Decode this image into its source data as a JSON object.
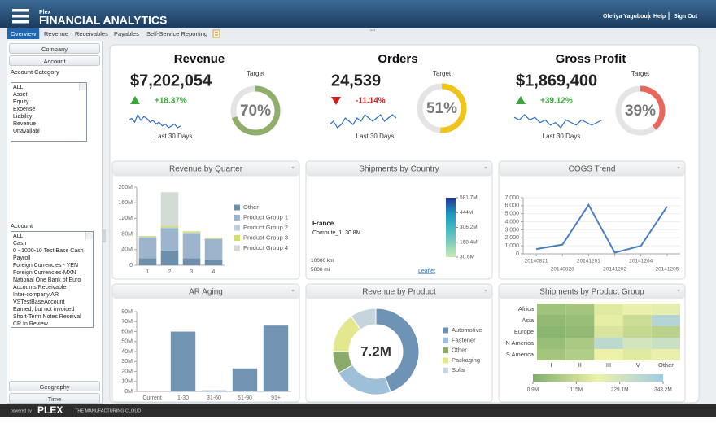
{
  "header": {
    "app_small": "Plex",
    "title": "FINANCIAL ANALYTICS",
    "user": "Ofeliya Yaguboua",
    "links": [
      "Help",
      "Sign Out"
    ]
  },
  "tabs": [
    "Overview",
    "Revenue",
    "Receivables",
    "Payables",
    "Self-Service Reporting"
  ],
  "active_tab": 0,
  "sidebar": {
    "sections_top": [
      "Company",
      "Account"
    ],
    "account_category": {
      "label": "Account Category",
      "items": [
        "ALL",
        "Asset",
        "Equity",
        "Expense",
        "Liability",
        "Revenue",
        "Unavailabl"
      ]
    },
    "account": {
      "label": "Account",
      "items": [
        "ALL",
        "Cash",
        "0 - 1000-10 Test Base Cash",
        "Payroll",
        "Foreign Currencies - YEN",
        "Foreign Currencies-MXN",
        "National One Bank of Euro",
        "Accounts Receivable",
        "Inter-company AR",
        "VSTestBaseAccount",
        "Earned, but not invoiced",
        "Short-Term Notes Receival",
        "CR In Review"
      ]
    },
    "sections_bottom": [
      "Geography",
      "Time"
    ]
  },
  "kpis": [
    {
      "title": "Revenue",
      "value": "$7,202,054",
      "change": "+18.37%",
      "trend": "up",
      "caption": "Last 30 Days",
      "target_label": "Target",
      "gauge": {
        "value": 70,
        "label": "70%"
      },
      "gauge_color": "#8fae6b",
      "sparkline": [
        6,
        7,
        5,
        9,
        6,
        8,
        7,
        5,
        6,
        4,
        5,
        3,
        4,
        2,
        3,
        4,
        2,
        3
      ]
    },
    {
      "title": "Orders",
      "value": "24,539",
      "change": "-11.14%",
      "trend": "down",
      "caption": "Last 30 Days",
      "target_label": "Target",
      "gauge": {
        "value": 51,
        "label": "51%"
      },
      "gauge_color": "#f0c419",
      "sparkline": [
        4,
        5,
        3,
        4,
        6,
        5,
        4,
        6,
        5,
        7,
        6,
        5,
        6,
        7,
        5,
        6,
        7,
        6
      ]
    },
    {
      "title": "Gross Profit",
      "value": "$1,869,400",
      "change": "+39.12%",
      "trend": "up",
      "caption": "Last 30 Days",
      "target_label": "Target",
      "gauge": {
        "value": 39,
        "label": "39%"
      },
      "gauge_color": "#e8675b",
      "sparkline": [
        6,
        5,
        7,
        5,
        6,
        4,
        5,
        3,
        4,
        2,
        5,
        4,
        3,
        5,
        4,
        3,
        4,
        5
      ]
    }
  ],
  "chart_data": [
    {
      "type": "bar",
      "stacked": true,
      "title": "Revenue by Quarter",
      "categories": [
        "1",
        "2",
        "3",
        "4"
      ],
      "series": [
        {
          "name": "Other",
          "color": "#6e8fac",
          "values": [
            18,
            38,
            18,
            13
          ]
        },
        {
          "name": "Product Group 1",
          "color": "#9db5cc",
          "values": [
            53,
            57,
            64,
            54
          ]
        },
        {
          "name": "Product Group 2",
          "color": "#c0cfdc",
          "values": [
            2,
            2,
            2,
            2
          ]
        },
        {
          "name": "Product Group 3",
          "color": "#d4e06a",
          "values": [
            2,
            3,
            3,
            2
          ]
        },
        {
          "name": "Product Group 4",
          "color": "#d3dbd4",
          "values": [
            0,
            87,
            0,
            0
          ]
        }
      ],
      "ylim": [
        0,
        200
      ],
      "yticks": [
        {
          "value": 0,
          "label": "0"
        },
        {
          "value": 40,
          "label": "40M"
        },
        {
          "value": 80,
          "label": "80M"
        },
        {
          "value": 120,
          "label": "120M"
        },
        {
          "value": 160,
          "label": "160M"
        },
        {
          "value": 200,
          "label": "200M"
        }
      ],
      "grid": false,
      "legend": "right"
    },
    {
      "type": "map",
      "title": "Shipments by Country",
      "tooltip": {
        "title": "France",
        "text": "Compute_1: 30.8M"
      },
      "clim": [
        30.6,
        581.7
      ],
      "colorscale": [
        "#c7e9b4",
        "#7fcdbb",
        "#41b6c4",
        "#1d91c0",
        "#253494"
      ],
      "ticks": [
        {
          "value": 581.7,
          "label": "581.7M"
        },
        {
          "value": 444,
          "label": "444M"
        },
        {
          "value": 306.2,
          "label": "306.2M"
        },
        {
          "value": 168.4,
          "label": "168.4M"
        },
        {
          "value": 30.6,
          "label": "30.6M"
        }
      ],
      "scale_labels": [
        "10000 km",
        "5000 mi"
      ],
      "attribution": "Leaflet"
    },
    {
      "type": "line",
      "title": "COGS Trend",
      "categories": [
        "20140821",
        "20140828",
        "20141201",
        "20141202",
        "20141204",
        "20141205"
      ],
      "values": [
        600,
        1150,
        6100,
        150,
        1000,
        5900
      ],
      "color": "#4a7fc0",
      "ylim": [
        0,
        7000
      ],
      "yticks": [
        0,
        {
          "value": 1000,
          "label": "1,000"
        },
        {
          "value": 2000,
          "label": "2,000"
        },
        {
          "value": 3000,
          "label": "3,000"
        },
        {
          "value": 4000,
          "label": "4,000"
        },
        {
          "value": 5000,
          "label": "5,000"
        },
        {
          "value": 6000,
          "label": "6,000"
        },
        {
          "value": 7000,
          "label": "7,000"
        }
      ],
      "grid": true
    },
    {
      "type": "bar",
      "title": "AR Aging",
      "categories": [
        "Current",
        "1-30",
        "31-60",
        "61-90",
        "91+"
      ],
      "values": [
        0,
        60,
        1,
        23,
        66
      ],
      "color": "#7393b3",
      "ylim": [
        0,
        80
      ],
      "yticks": [
        {
          "value": 0,
          "label": "0M"
        },
        {
          "value": 10,
          "label": "10M"
        },
        {
          "value": 20,
          "label": "20M"
        },
        {
          "value": 30,
          "label": "30M"
        },
        {
          "value": 40,
          "label": "40M"
        },
        {
          "value": 50,
          "label": "50M"
        },
        {
          "value": 60,
          "label": "60M"
        },
        {
          "value": 70,
          "label": "70M"
        },
        {
          "value": 80,
          "label": "80M"
        }
      ],
      "grid": false
    },
    {
      "type": "donut",
      "title": "Revenue by Product",
      "center_label": "7.2M",
      "categories": [
        "Automotive",
        "Fastener",
        "Other",
        "Packaging",
        "Solar"
      ],
      "values": [
        3.2,
        1.6,
        0.6,
        1.1,
        0.7
      ],
      "colors": [
        "#6f93b5",
        "#9dbfd8",
        "#8bab6a",
        "#e3e88f",
        "#c6d4dc"
      ],
      "legend": "right"
    },
    {
      "type": "heatmap",
      "title": "Shipments by Product Group",
      "rows": [
        "Africa",
        "Asia",
        "Europe",
        "N America",
        "S America"
      ],
      "columns": [
        "I",
        "II",
        "III",
        "IV",
        "Other"
      ],
      "values": [
        [
          50,
          60,
          150,
          180,
          190
        ],
        [
          30,
          40,
          160,
          120,
          300
        ],
        [
          20,
          30,
          140,
          110,
          90
        ],
        [
          40,
          70,
          280,
          230,
          250
        ],
        [
          60,
          80,
          170,
          150,
          180
        ]
      ],
      "clim": [
        0.9,
        343.2
      ],
      "colorscale": [
        "#7fae6a",
        "#eef2a8",
        "#9fcbe6"
      ],
      "ticks": [
        {
          "value": 0.9,
          "label": "0.9M"
        },
        {
          "value": 115,
          "label": "115M"
        },
        {
          "value": 229.1,
          "label": "229.1M"
        },
        {
          "value": 343.2,
          "label": "343.2M"
        }
      ]
    }
  ],
  "footer": {
    "powered": "powered by",
    "brand": "PLEX",
    "tagline": "THE MANUFACTURING CLOUD"
  }
}
